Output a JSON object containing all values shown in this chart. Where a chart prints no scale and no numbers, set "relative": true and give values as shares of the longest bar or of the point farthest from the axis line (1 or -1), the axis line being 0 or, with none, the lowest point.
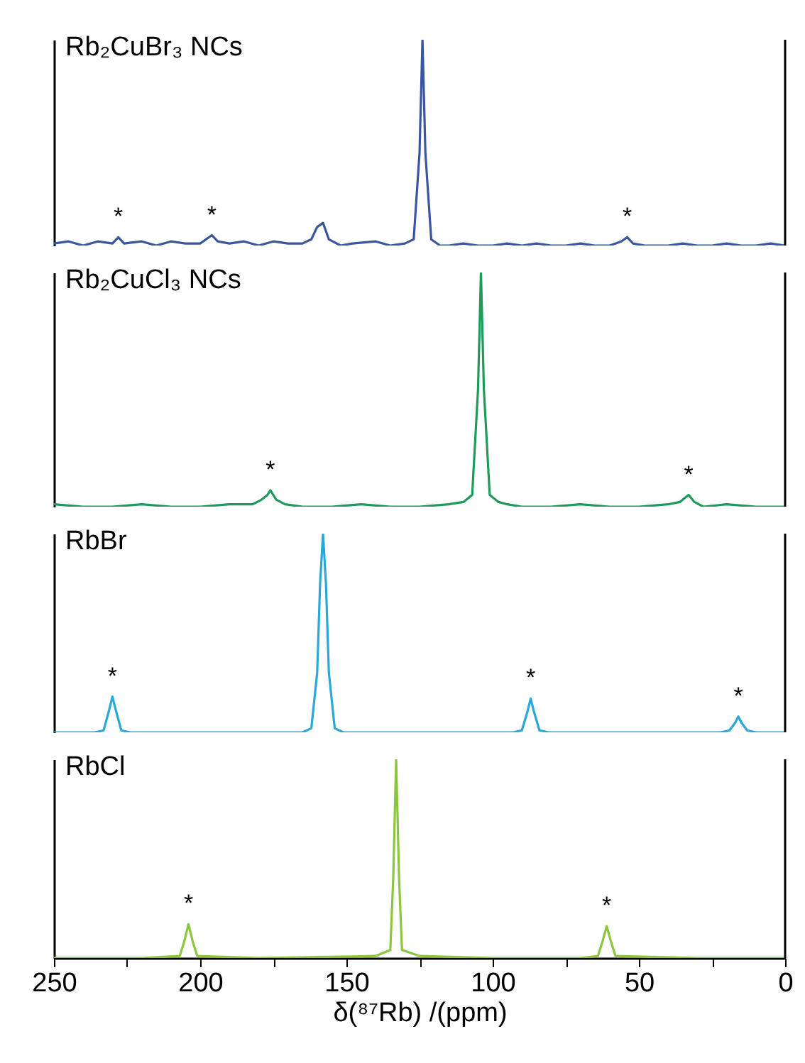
{
  "chart_data": [
    {
      "type": "line",
      "relative": true,
      "xlim": [
        250,
        0
      ],
      "tick_labels": false,
      "x": [
        250,
        245,
        240,
        235,
        230,
        228,
        226,
        220,
        215,
        210,
        205,
        200,
        198,
        196,
        194,
        190,
        185,
        180,
        175,
        170,
        165,
        162,
        160,
        158,
        156,
        152,
        148,
        140,
        135,
        130,
        127,
        125,
        124,
        123,
        121,
        118,
        115,
        110,
        105,
        100,
        95,
        90,
        85,
        80,
        75,
        70,
        65,
        60,
        56,
        54,
        52,
        48,
        45,
        40,
        35,
        30,
        25,
        20,
        15,
        10,
        5,
        0
      ],
      "series": [
        {
          "name": "Rb₂CuBr₃ NCs",
          "color": "#3a56a0",
          "values": [
            0.01,
            0.02,
            0,
            0.02,
            0.01,
            0.04,
            0.01,
            0.02,
            0,
            0.02,
            0.01,
            0.01,
            0.03,
            0.05,
            0.02,
            0.01,
            0.02,
            0,
            0.02,
            0.01,
            0.01,
            0.03,
            0.09,
            0.11,
            0.03,
            0,
            0.01,
            0.02,
            0,
            0.01,
            0.03,
            0.45,
            1,
            0.45,
            0.03,
            0,
            0,
            0.01,
            0,
            0,
            0.01,
            0,
            0.01,
            0,
            0,
            0.01,
            0,
            0,
            0.02,
            0.04,
            0.01,
            0,
            0,
            0,
            0.01,
            0,
            0,
            0.01,
            0,
            0,
            0.01,
            0
          ]
        }
      ],
      "annotations": [
        {
          "text": "*",
          "x": 228,
          "y": 0.04
        },
        {
          "text": "*",
          "x": 196,
          "y": 0.05
        },
        {
          "text": "*",
          "x": 54,
          "y": 0.04
        }
      ]
    },
    {
      "type": "line",
      "relative": true,
      "xlim": [
        250,
        0
      ],
      "tick_labels": false,
      "x": [
        250,
        240,
        230,
        220,
        210,
        200,
        190,
        182,
        179,
        177,
        176,
        174,
        171,
        165,
        155,
        145,
        135,
        125,
        115,
        110,
        107,
        105,
        104,
        103,
        101,
        98,
        95,
        90,
        80,
        70,
        60,
        50,
        40,
        36,
        34,
        33,
        31,
        28,
        20,
        10,
        0
      ],
      "series": [
        {
          "name": "Rb₂CuCl₃ NCs",
          "color": "#1f9a5a",
          "values": [
            0.01,
            0,
            0,
            0.01,
            0,
            0,
            0.01,
            0.01,
            0.03,
            0.05,
            0.07,
            0.03,
            0.01,
            0,
            0,
            0.01,
            0,
            0,
            0.01,
            0.02,
            0.05,
            0.5,
            1,
            0.5,
            0.05,
            0.02,
            0.01,
            0,
            0,
            0.01,
            0,
            0,
            0.01,
            0.02,
            0.04,
            0.05,
            0.02,
            0,
            0.01,
            0,
            0
          ]
        }
      ],
      "annotations": [
        {
          "text": "*",
          "x": 176,
          "y": 0.07
        },
        {
          "text": "*",
          "x": 33,
          "y": 0.05
        }
      ]
    },
    {
      "type": "line",
      "relative": true,
      "xlim": [
        250,
        0
      ],
      "tick_labels": false,
      "x": [
        250,
        236,
        233,
        231,
        230,
        229,
        227,
        224,
        200,
        165,
        162,
        160,
        159,
        158,
        157,
        156,
        154,
        151,
        120,
        93,
        90,
        88,
        87,
        86,
        84,
        81,
        50,
        22,
        19,
        17,
        16,
        15,
        13,
        10,
        0
      ],
      "series": [
        {
          "name": "RbBr",
          "color": "#29a9d8",
          "values": [
            0,
            0,
            0.01,
            0.12,
            0.18,
            0.12,
            0.01,
            0,
            0,
            0,
            0.02,
            0.3,
            0.75,
            1,
            0.75,
            0.3,
            0.02,
            0,
            0,
            0,
            0.01,
            0.11,
            0.17,
            0.11,
            0.01,
            0,
            0,
            0,
            0.01,
            0.05,
            0.08,
            0.05,
            0.01,
            0,
            0
          ]
        }
      ],
      "annotations": [
        {
          "text": "*",
          "x": 230,
          "y": 0.18
        },
        {
          "text": "*",
          "x": 87,
          "y": 0.17
        },
        {
          "text": "*",
          "x": 16,
          "y": 0.08
        }
      ]
    },
    {
      "type": "line",
      "relative": true,
      "xlim": [
        250,
        0
      ],
      "xticks": [
        250,
        {
          "value": 225,
          "label": null
        },
        200,
        {
          "value": 175,
          "label": null
        },
        150,
        {
          "value": 125,
          "label": null
        },
        100,
        {
          "value": 75,
          "label": null
        },
        50,
        {
          "value": 25,
          "label": null
        },
        0
      ],
      "tick_labels": "x",
      "xlabel": "δ(⁸⁷Rb) /(ppm)",
      "x": [
        250,
        220,
        207,
        205.5,
        204,
        202.5,
        201,
        180,
        140,
        135,
        134,
        133,
        132,
        131,
        125,
        100,
        70,
        64,
        62.5,
        61,
        59.5,
        58,
        30,
        0
      ],
      "series": [
        {
          "name": "RbCl",
          "color": "#8cc63e",
          "values": [
            0,
            0,
            0.01,
            0.08,
            0.17,
            0.08,
            0.01,
            0,
            0.01,
            0.04,
            0.4,
            1,
            0.4,
            0.04,
            0.01,
            0,
            0,
            0.01,
            0.08,
            0.16,
            0.08,
            0.01,
            0,
            0
          ]
        }
      ],
      "annotations": [
        {
          "text": "*",
          "x": 204,
          "y": 0.17
        },
        {
          "text": "*",
          "x": 61,
          "y": 0.16
        }
      ]
    }
  ]
}
